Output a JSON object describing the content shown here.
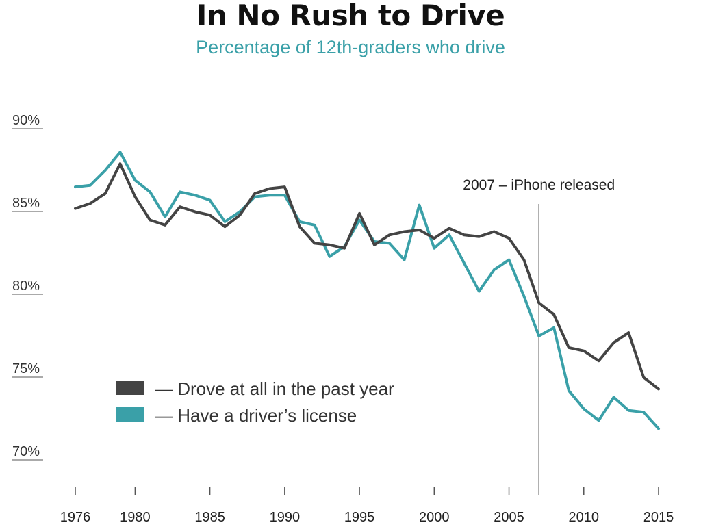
{
  "chart_data": {
    "type": "line",
    "title": "In No Rush to Drive",
    "subtitle": "Percentage of 12th-graders who drive",
    "xlabel": "",
    "ylabel": "",
    "xlim": [
      1976,
      2015
    ],
    "ylim": [
      70,
      90
    ],
    "yticks": [
      {
        "value": 90,
        "label": "90%"
      },
      {
        "value": 85,
        "label": "85%"
      },
      {
        "value": 80,
        "label": "80%"
      },
      {
        "value": 75,
        "label": "75%"
      },
      {
        "value": 70,
        "label": "70%"
      }
    ],
    "xticks": [
      {
        "value": 1976,
        "label": "1976"
      },
      {
        "value": 1980,
        "label": "1980"
      },
      {
        "value": 1985,
        "label": "1985"
      },
      {
        "value": 1990,
        "label": "1990"
      },
      {
        "value": 1995,
        "label": "1995"
      },
      {
        "value": 2000,
        "label": "2000"
      },
      {
        "value": 2005,
        "label": "2005"
      },
      {
        "value": 2010,
        "label": "2010"
      },
      {
        "value": 2015,
        "label": "2015"
      }
    ],
    "x": [
      1976,
      1977,
      1978,
      1979,
      1980,
      1981,
      1982,
      1983,
      1984,
      1985,
      1986,
      1987,
      1988,
      1989,
      1990,
      1991,
      1992,
      1993,
      1994,
      1995,
      1996,
      1997,
      1998,
      1999,
      2000,
      2001,
      2002,
      2003,
      2004,
      2005,
      2006,
      2007,
      2008,
      2009,
      2010,
      2011,
      2012,
      2013,
      2014,
      2015
    ],
    "series": [
      {
        "name": "Drove at all in the past year",
        "legend_label": "— Drove at all in the past year",
        "color": "#444444",
        "values": [
          85.1,
          85.4,
          86.0,
          87.8,
          85.8,
          84.4,
          84.1,
          85.2,
          84.9,
          84.7,
          84.0,
          84.7,
          86.0,
          86.3,
          86.4,
          84.0,
          83.0,
          82.9,
          82.7,
          84.8,
          82.9,
          83.5,
          83.7,
          83.8,
          83.3,
          83.9,
          83.5,
          83.4,
          83.7,
          83.3,
          82.0,
          79.4,
          78.7,
          76.7,
          76.5,
          75.9,
          77.0,
          77.6,
          74.9,
          74.2
        ]
      },
      {
        "name": "Have a driver's license",
        "legend_label": "— Have a driver’s license",
        "color": "#3aa0a8",
        "values": [
          86.4,
          86.5,
          87.4,
          88.5,
          86.8,
          86.1,
          84.6,
          86.1,
          85.9,
          85.6,
          84.3,
          84.9,
          85.8,
          85.9,
          85.9,
          84.3,
          84.1,
          82.2,
          82.8,
          84.4,
          83.1,
          83.0,
          82.0,
          85.3,
          82.7,
          83.5,
          81.8,
          80.1,
          81.4,
          82.0,
          79.8,
          77.4,
          77.9,
          74.1,
          73.0,
          72.3,
          73.7,
          72.9,
          72.8,
          71.8
        ]
      }
    ],
    "annotations": [
      {
        "x": 2007,
        "text": "2007 – iPhone released"
      }
    ],
    "legend_position": "bottom-left",
    "grid": false
  }
}
